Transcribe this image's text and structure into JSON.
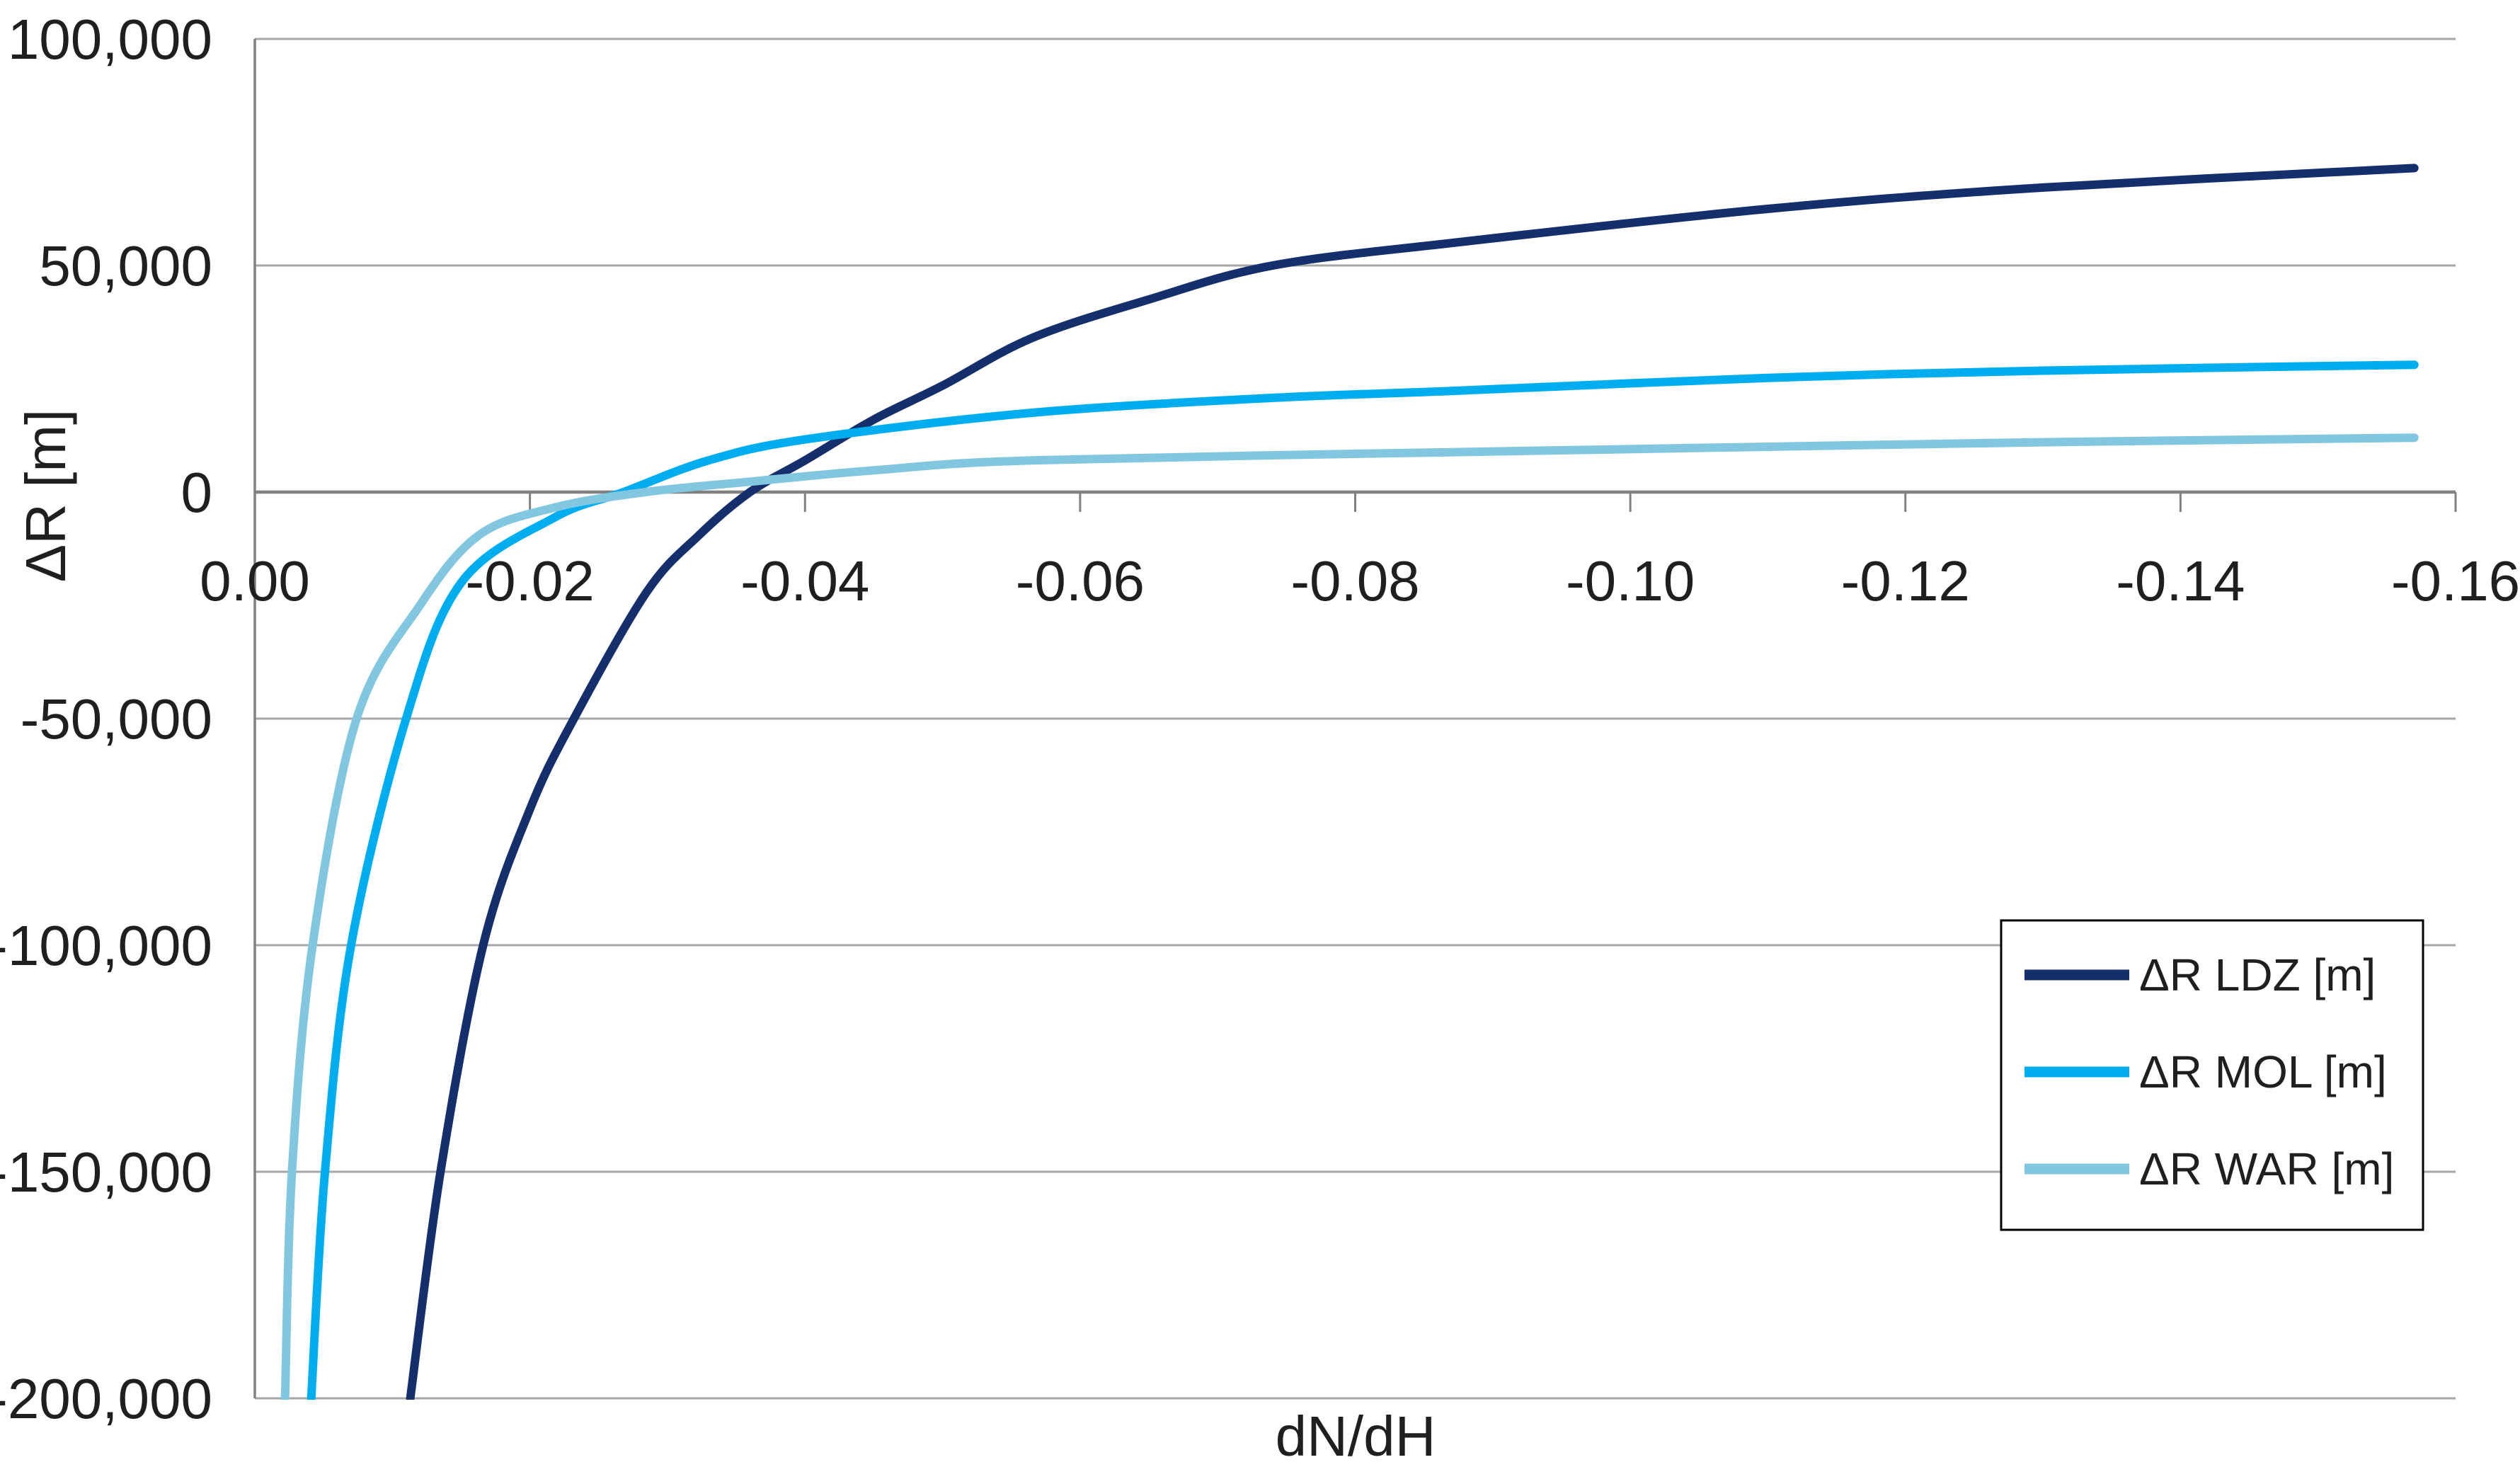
{
  "page": {
    "background": "#FFFFFF"
  },
  "chart_data": {
    "type": "line",
    "title": "",
    "xlabel": "dN/dH",
    "ylabel": "ΔR [m]",
    "grid": "horizontal",
    "x_axis": {
      "min": -0.16,
      "max": 0.0,
      "reversed": true,
      "tick_values": [
        0,
        -0.02,
        -0.04,
        -0.06,
        -0.08,
        -0.1,
        -0.12,
        -0.14,
        -0.16
      ],
      "tick_labels": [
        "0.00",
        "-0.02",
        "-0.04",
        "-0.06",
        "-0.08",
        "-0.10",
        "-0.12",
        "-0.14",
        "-0.16"
      ]
    },
    "y_axis": {
      "min": -200000,
      "max": 100000,
      "tick_values": [
        100000,
        50000,
        0,
        -50000,
        -100000,
        -150000,
        -200000
      ],
      "tick_labels": [
        "100,000",
        "50,000",
        "0",
        "-50,000",
        "-100,000",
        "-150,000",
        "-200,000"
      ]
    },
    "colors": {
      "gridline": "#A6A6A6",
      "axis_line": "#808080",
      "text": "#1F1F1F",
      "legend_border": "#000000",
      "legend_background": "#FFFFFF"
    },
    "legend": {
      "position": "middle-right",
      "entries": [
        "ΔR LDZ [m]",
        "ΔR MOL [m]",
        "ΔR WAR [m]"
      ]
    },
    "series": [
      {
        "name": "ΔR LDZ [m]",
        "id": "ldz",
        "color": "#142F6B",
        "points": [
          [
            -0.0113,
            -200000
          ],
          [
            -0.0135,
            -150000
          ],
          [
            -0.0166,
            -100000
          ],
          [
            -0.02,
            -70000
          ],
          [
            -0.0232,
            -50000
          ],
          [
            -0.0285,
            -22000
          ],
          [
            -0.0323,
            -9500
          ],
          [
            -0.036,
            0
          ],
          [
            -0.04,
            7000
          ],
          [
            -0.045,
            16000
          ],
          [
            -0.05,
            23500
          ],
          [
            -0.0565,
            34000
          ],
          [
            -0.065,
            42500
          ],
          [
            -0.074,
            50000
          ],
          [
            -0.0871,
            55000
          ],
          [
            -0.11,
            62500
          ],
          [
            -0.13,
            67200
          ],
          [
            -0.157,
            71500
          ]
        ]
      },
      {
        "name": "ΔR MOL [m]",
        "id": "mol",
        "color": "#00AEEF",
        "points": [
          [
            -0.0041,
            -200000
          ],
          [
            -0.0051,
            -150000
          ],
          [
            -0.007,
            -100000
          ],
          [
            -0.011,
            -50000
          ],
          [
            -0.015,
            -20000
          ],
          [
            -0.0218,
            -5600
          ],
          [
            -0.0268,
            0
          ],
          [
            -0.033,
            7000
          ],
          [
            -0.0402,
            11700
          ],
          [
            -0.0565,
            17500
          ],
          [
            -0.074,
            20800
          ],
          [
            -0.0869,
            22300
          ],
          [
            -0.11,
            25200
          ],
          [
            -0.13,
            26800
          ],
          [
            -0.157,
            28100
          ]
        ]
      },
      {
        "name": "ΔR WAR [m]",
        "id": "war",
        "color": "#82C6E0",
        "points": [
          [
            -0.0022,
            -200000
          ],
          [
            -0.0027,
            -150000
          ],
          [
            -0.0042,
            -100000
          ],
          [
            -0.0074,
            -50000
          ],
          [
            -0.012,
            -25000
          ],
          [
            -0.0163,
            -9500
          ],
          [
            -0.0218,
            -3400
          ],
          [
            -0.0284,
            0
          ],
          [
            -0.036,
            2300
          ],
          [
            -0.045,
            4800
          ],
          [
            -0.0565,
            7000
          ],
          [
            -0.0869,
            8800
          ],
          [
            -0.11,
            10000
          ],
          [
            -0.13,
            11000
          ],
          [
            -0.157,
            12000
          ]
        ]
      }
    ]
  }
}
